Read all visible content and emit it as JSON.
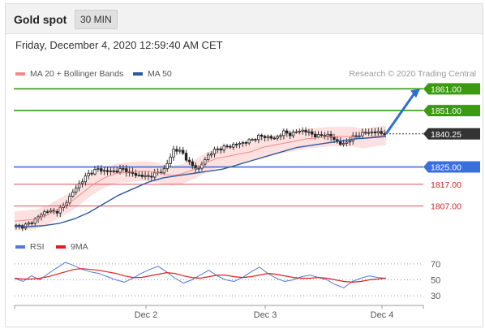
{
  "header": {
    "title": "Gold spot",
    "timeframe": "30 MIN"
  },
  "timestamp": "Friday, December 4, 2020 12:59:40 AM CET",
  "legend": {
    "ma20": {
      "label": "MA 20 + Bollinger Bands",
      "color": "#f08a8a"
    },
    "ma50": {
      "label": "MA 50",
      "color": "#2c5aa0"
    }
  },
  "credit": "Research © 2020 Trading Central",
  "rsi_legend": {
    "rsi": {
      "label": "RSI",
      "color": "#4f78e0"
    },
    "ma9": {
      "label": "9MA",
      "color": "#e02020"
    }
  },
  "chart_data": [
    {
      "type": "candlestick",
      "title": "Gold spot",
      "x_ticks": [
        "Dec 2",
        "Dec 3",
        "Dec 4"
      ],
      "ylim": [
        1796,
        1866
      ],
      "current_price": {
        "value": 1840.25,
        "label": "1840.25"
      },
      "levels": [
        {
          "value": 1861.0,
          "label": "1861.00",
          "kind": "resistance"
        },
        {
          "value": 1851.0,
          "label": "1851.00",
          "kind": "resistance"
        },
        {
          "value": 1825.0,
          "label": "1825.00",
          "kind": "pivot"
        },
        {
          "value": 1817.0,
          "label": "1817.00",
          "kind": "support"
        },
        {
          "value": 1807.0,
          "label": "1807.00",
          "kind": "support"
        }
      ],
      "price_path": [
        1798,
        1797.5,
        1799,
        1802,
        1805,
        1804,
        1807,
        1813,
        1818,
        1822,
        1824,
        1823,
        1823,
        1824,
        1822,
        1821,
        1820.5,
        1822,
        1824,
        1833,
        1832,
        1826,
        1824,
        1830,
        1833,
        1834,
        1835,
        1836,
        1837,
        1839,
        1839,
        1838,
        1841,
        1840,
        1842,
        1841,
        1839,
        1840,
        1838,
        1835,
        1838,
        1840,
        1841,
        1841,
        1840.25
      ],
      "ma20_path": [
        1800,
        1800.5,
        1801,
        1803,
        1806,
        1809,
        1813,
        1817,
        1820,
        1822,
        1822.5,
        1823,
        1823,
        1822,
        1821,
        1822,
        1824,
        1827,
        1829,
        1830,
        1831,
        1832,
        1834,
        1835,
        1836,
        1837,
        1838,
        1838.5,
        1839,
        1839,
        1839,
        1838,
        1839,
        1839.5
      ],
      "ma50_path": [
        1797.5,
        1797.5,
        1798,
        1799,
        1801,
        1804,
        1808,
        1812,
        1815,
        1818,
        1820,
        1821,
        1822,
        1823,
        1824,
        1826,
        1828,
        1830,
        1832,
        1834,
        1835,
        1836,
        1837,
        1838,
        1838.5,
        1839
      ],
      "bollinger_width": 4.5
    },
    {
      "type": "line",
      "title": "RSI",
      "ylim": [
        20,
        80
      ],
      "yticks": [
        70,
        50,
        30
      ],
      "series": [
        {
          "name": "RSI",
          "values": [
            52,
            48,
            55,
            50,
            58,
            65,
            72,
            68,
            63,
            60,
            58,
            54,
            50,
            47,
            52,
            58,
            63,
            67,
            60,
            52,
            46,
            50,
            56,
            62,
            55,
            50,
            48,
            53,
            60,
            66,
            58,
            52,
            48,
            50,
            54,
            56,
            53,
            50,
            44,
            40,
            48,
            52,
            55,
            53,
            52
          ]
        },
        {
          "name": "9MA",
          "values": [
            52,
            51,
            51,
            52,
            54,
            57,
            60,
            63,
            64,
            63,
            62,
            60,
            58,
            55,
            53,
            53,
            55,
            57,
            59,
            58,
            55,
            53,
            52,
            54,
            56,
            56,
            54,
            53,
            54,
            56,
            58,
            57,
            55,
            53,
            52,
            52,
            53,
            52,
            50,
            48,
            47,
            48,
            50,
            51,
            52
          ]
        }
      ]
    }
  ]
}
